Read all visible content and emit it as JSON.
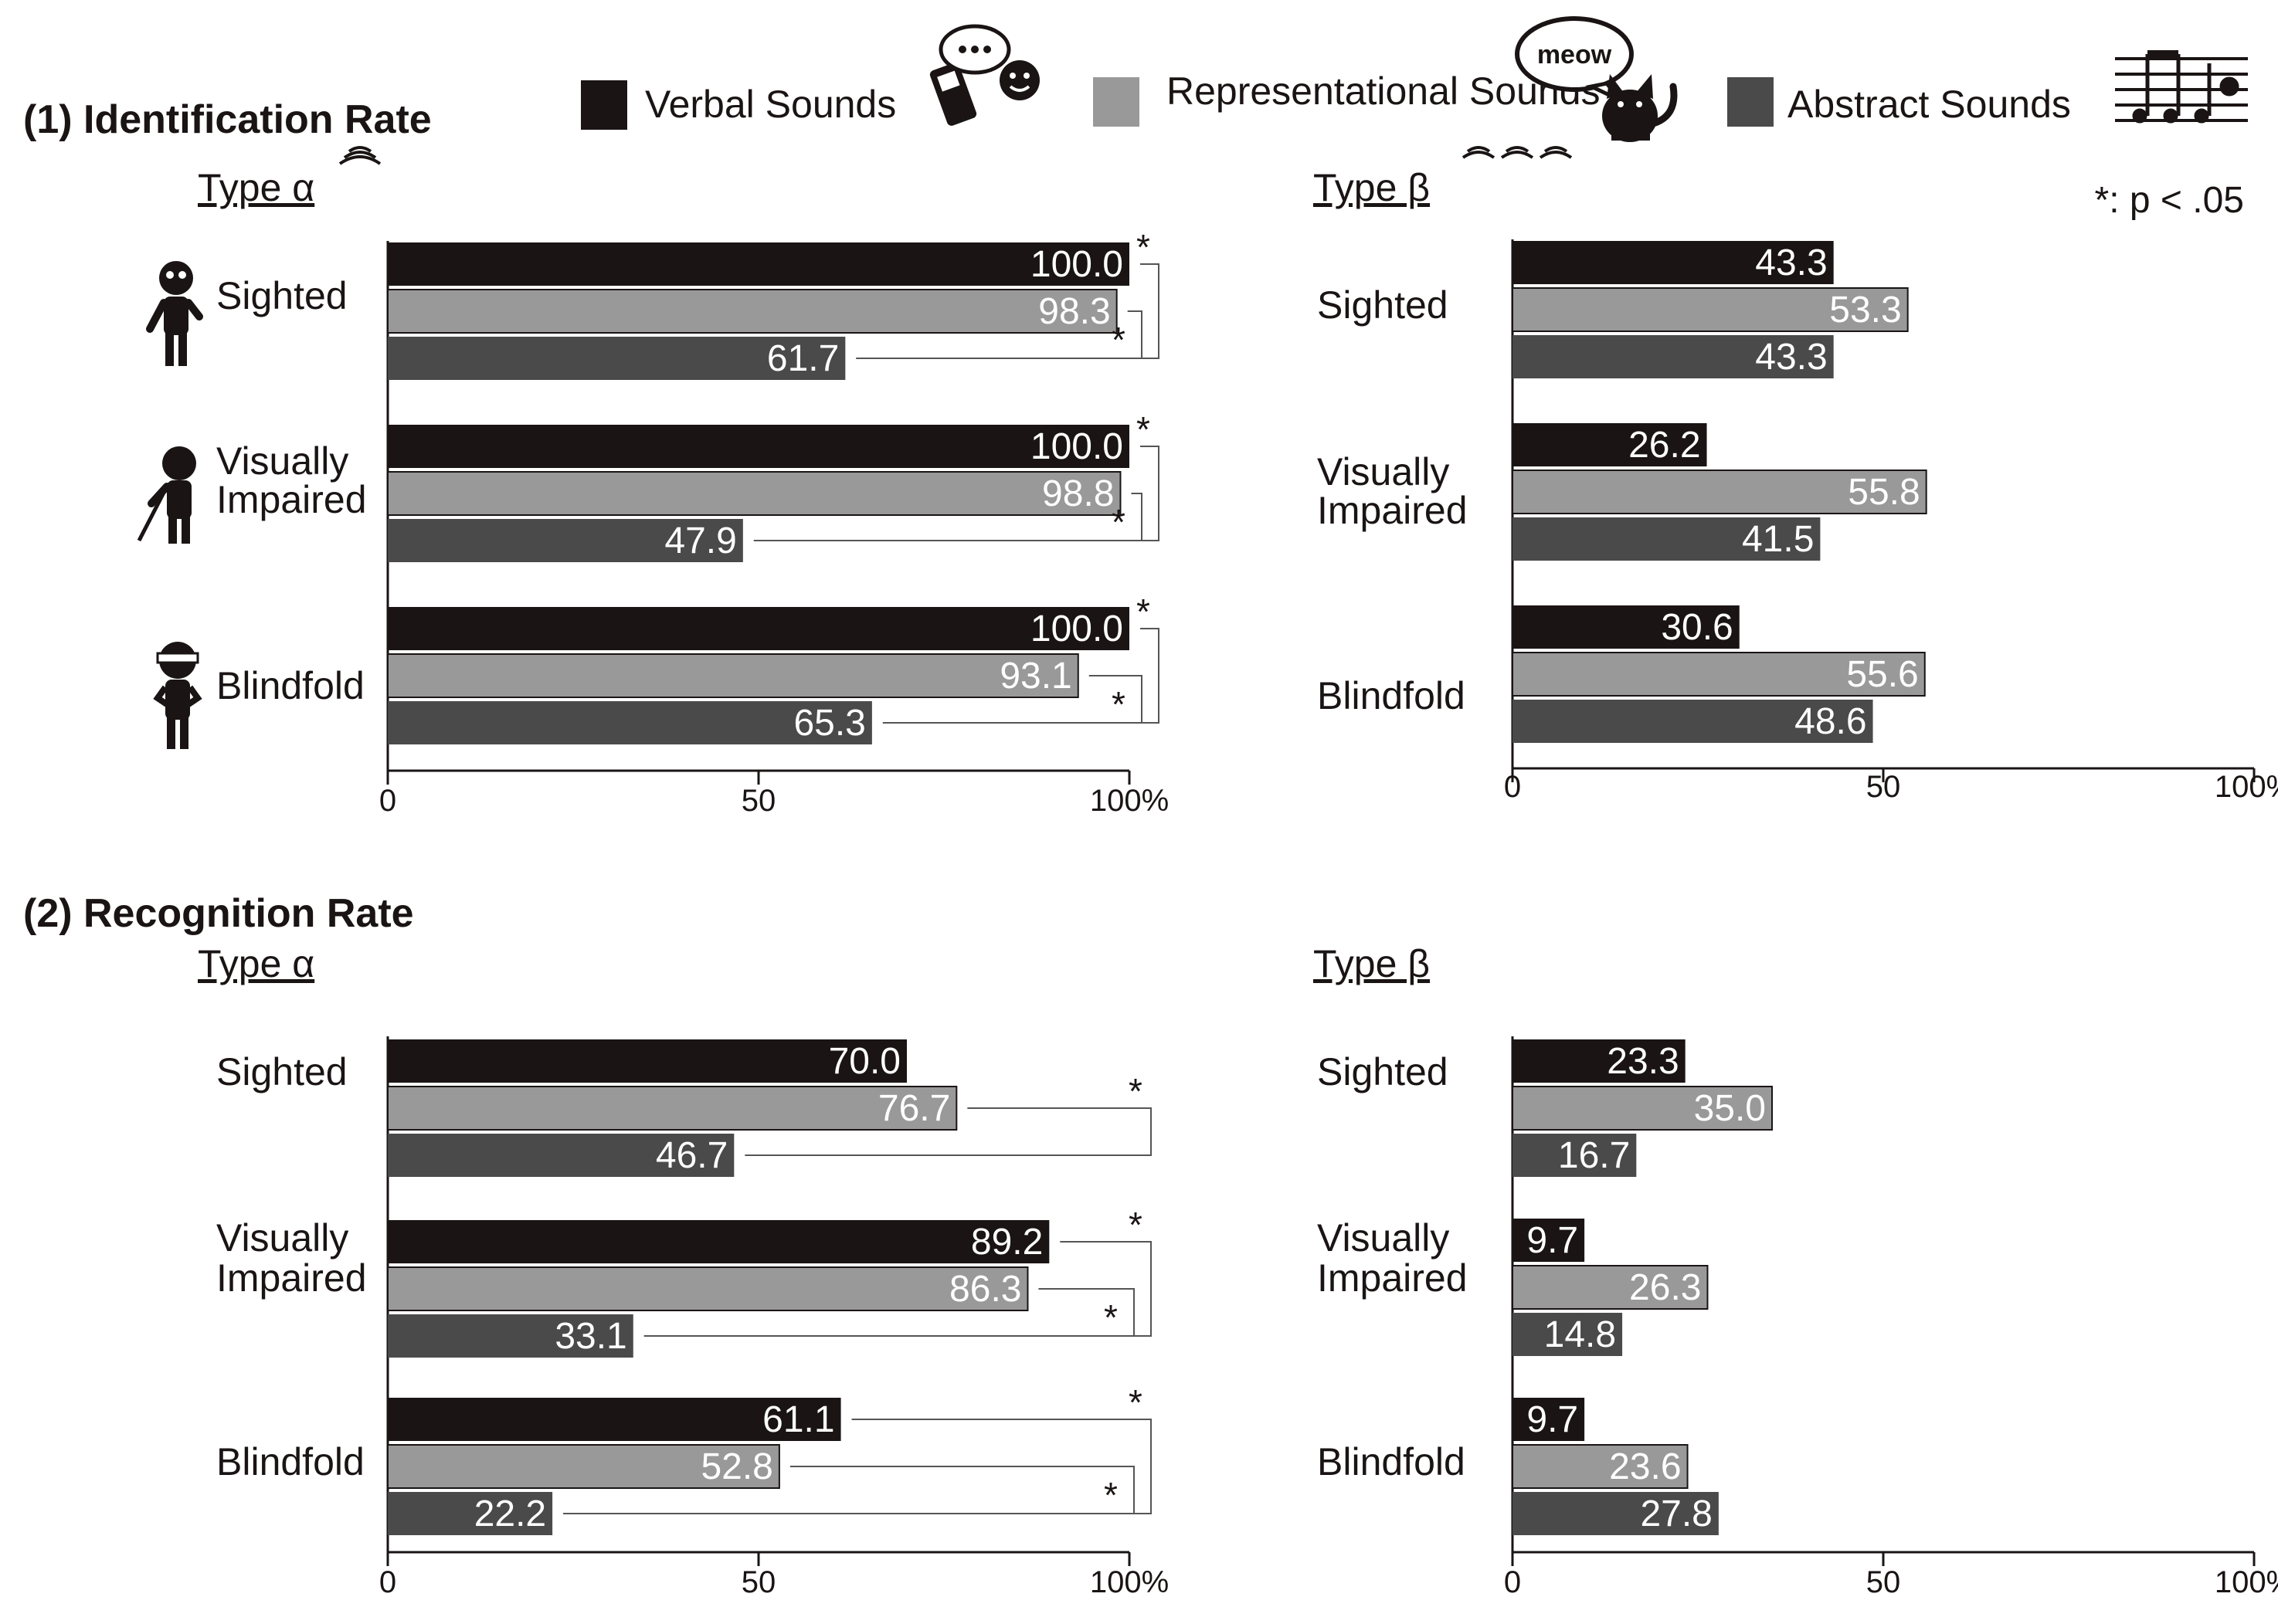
{
  "legend": {
    "items": [
      {
        "label": "Verbal Sounds",
        "color": "#1a1414"
      },
      {
        "label": "Representational Sounds",
        "color": "#999999"
      },
      {
        "label": "Abstract Sounds",
        "color": "#4a4a4a"
      }
    ],
    "cat_bubble": "meow"
  },
  "significance_note": "*: p < .05",
  "sections": [
    {
      "title": "(1) Identification Rate"
    },
    {
      "title": "(2) Recognition Rate"
    }
  ],
  "chart_data": [
    {
      "type": "bar",
      "id": "identification-alpha",
      "section": "(1) Identification Rate",
      "title": "Type α",
      "orientation": "horizontal",
      "categories": [
        "Sighted",
        "Visually Impaired",
        "Blindfold"
      ],
      "series": [
        {
          "name": "Verbal Sounds",
          "values": [
            100.0,
            100.0,
            100.0
          ]
        },
        {
          "name": "Representational Sounds",
          "values": [
            98.3,
            98.8,
            93.1
          ]
        },
        {
          "name": "Abstract Sounds",
          "values": [
            61.7,
            47.9,
            65.3
          ]
        }
      ],
      "xlim": [
        0,
        100
      ],
      "ticks": [
        "0",
        "50",
        "100%"
      ],
      "significance": [
        {
          "group": 0,
          "pairs": [
            [
              0,
              2,
              "*"
            ],
            [
              1,
              2,
              "*"
            ]
          ]
        },
        {
          "group": 1,
          "pairs": [
            [
              0,
              2,
              "*"
            ],
            [
              1,
              2,
              "*"
            ]
          ]
        },
        {
          "group": 2,
          "pairs": [
            [
              0,
              2,
              "*"
            ],
            [
              1,
              2,
              "*"
            ]
          ]
        }
      ]
    },
    {
      "type": "bar",
      "id": "identification-beta",
      "section": "(1) Identification Rate",
      "title": "Type β",
      "orientation": "horizontal",
      "categories": [
        "Sighted",
        "Visually Impaired",
        "Blindfold"
      ],
      "series": [
        {
          "name": "Verbal Sounds",
          "values": [
            43.3,
            26.2,
            30.6
          ]
        },
        {
          "name": "Representational Sounds",
          "values": [
            53.3,
            55.8,
            55.6
          ]
        },
        {
          "name": "Abstract Sounds",
          "values": [
            43.3,
            41.5,
            48.6
          ]
        }
      ],
      "xlim": [
        0,
        100
      ],
      "ticks": [
        "0",
        "50",
        "100%"
      ],
      "significance": []
    },
    {
      "type": "bar",
      "id": "recognition-alpha",
      "section": "(2) Recognition Rate",
      "title": "Type α",
      "orientation": "horizontal",
      "categories": [
        "Sighted",
        "Visually Impaired",
        "Blindfold"
      ],
      "series": [
        {
          "name": "Verbal Sounds",
          "values": [
            70.0,
            89.2,
            61.1
          ]
        },
        {
          "name": "Representational Sounds",
          "values": [
            76.7,
            86.3,
            52.8
          ]
        },
        {
          "name": "Abstract Sounds",
          "values": [
            46.7,
            33.1,
            22.2
          ]
        }
      ],
      "xlim": [
        0,
        100
      ],
      "ticks": [
        "0",
        "50",
        "100%"
      ],
      "significance": [
        {
          "group": 0,
          "pairs": [
            [
              1,
              2,
              "*"
            ]
          ]
        },
        {
          "group": 1,
          "pairs": [
            [
              0,
              2,
              "*"
            ],
            [
              1,
              2,
              "*"
            ]
          ]
        },
        {
          "group": 2,
          "pairs": [
            [
              0,
              2,
              "*"
            ],
            [
              1,
              2,
              "*"
            ]
          ]
        }
      ]
    },
    {
      "type": "bar",
      "id": "recognition-beta",
      "section": "(2) Recognition Rate",
      "title": "Type β",
      "orientation": "horizontal",
      "categories": [
        "Sighted",
        "Visually Impaired",
        "Blindfold"
      ],
      "series": [
        {
          "name": "Verbal Sounds",
          "values": [
            23.3,
            9.7,
            9.7
          ]
        },
        {
          "name": "Representational Sounds",
          "values": [
            35.0,
            26.3,
            23.6
          ]
        },
        {
          "name": "Abstract Sounds",
          "values": [
            16.7,
            14.8,
            27.8
          ]
        }
      ],
      "xlim": [
        0,
        100
      ],
      "ticks": [
        "0",
        "50",
        "100%"
      ],
      "significance": []
    }
  ]
}
